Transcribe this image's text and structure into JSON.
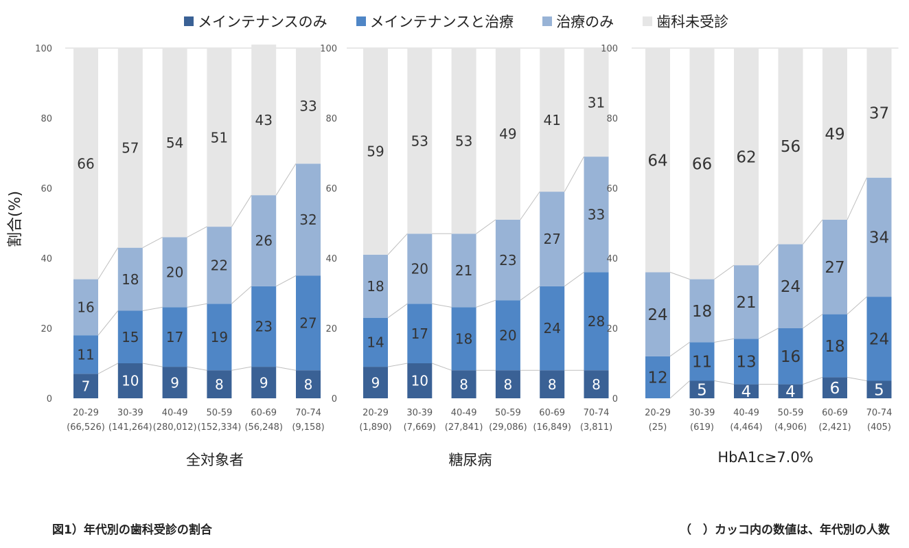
{
  "legend": {
    "items": [
      {
        "label": "メインテナンスのみ",
        "color": "#3a6195"
      },
      {
        "label": "メインテナンスと治療",
        "color": "#4f86c6"
      },
      {
        "label": "治療のみ",
        "color": "#98b3d6"
      },
      {
        "label": "歯科未受診",
        "color": "#e6e6e6"
      }
    ]
  },
  "y_axis_label": "割合(%)",
  "caption_left": "図1）年代別の歯科受診の割合",
  "caption_right": "（　）カッコ内の数値は、年代別の人数",
  "chart_data": [
    {
      "type": "bar",
      "stacked": true,
      "title": "全対象者",
      "ylim": [
        0,
        100
      ],
      "yticks": [
        0,
        20,
        40,
        60,
        80,
        100
      ],
      "categories": [
        "20-29",
        "30-39",
        "40-49",
        "50-59",
        "60-69",
        "70-74"
      ],
      "counts": [
        "(66,526)",
        "(141,264)",
        "(280,012)",
        "(152,334)",
        "(56,248)",
        "(9,158)"
      ],
      "series": [
        {
          "name": "メインテナンスのみ",
          "values": [
            7,
            10,
            9,
            8,
            9,
            8
          ]
        },
        {
          "name": "メインテナンスと治療",
          "values": [
            11,
            15,
            17,
            19,
            23,
            27
          ]
        },
        {
          "name": "治療のみ",
          "values": [
            16,
            18,
            20,
            22,
            26,
            32
          ]
        },
        {
          "name": "歯科未受診",
          "values": [
            66,
            57,
            54,
            51,
            43,
            33
          ]
        }
      ]
    },
    {
      "type": "bar",
      "stacked": true,
      "title": "糖尿病",
      "ylim": [
        0,
        100
      ],
      "yticks": [
        0,
        20,
        40,
        60,
        80,
        100
      ],
      "categories": [
        "20-29",
        "30-39",
        "40-49",
        "50-59",
        "60-69",
        "70-74"
      ],
      "counts": [
        "(1,890)",
        "(7,669)",
        "(27,841)",
        "(29,086)",
        "(16,849)",
        "(3,811)"
      ],
      "series": [
        {
          "name": "メインテナンスのみ",
          "values": [
            9,
            10,
            8,
            8,
            8,
            8
          ]
        },
        {
          "name": "メインテナンスと治療",
          "values": [
            14,
            17,
            18,
            20,
            24,
            28
          ]
        },
        {
          "name": "治療のみ",
          "values": [
            18,
            20,
            21,
            23,
            27,
            33
          ]
        },
        {
          "name": "歯科未受診",
          "values": [
            59,
            53,
            53,
            49,
            41,
            31
          ]
        }
      ]
    },
    {
      "type": "bar",
      "stacked": true,
      "title": "HbA1c≥7.0%",
      "ylim": [
        0,
        100
      ],
      "yticks": [
        0,
        20,
        40,
        60,
        80,
        100
      ],
      "categories": [
        "20-29",
        "30-39",
        "40-49",
        "50-59",
        "60-69",
        "70-74"
      ],
      "counts": [
        "(25)",
        "(619)",
        "(4,464)",
        "(4,906)",
        "(2,421)",
        "(405)"
      ],
      "series": [
        {
          "name": "メインテナンスのみ",
          "values": [
            0,
            5,
            4,
            4,
            6,
            5
          ]
        },
        {
          "name": "メインテナンスと治療",
          "values": [
            12,
            11,
            13,
            16,
            18,
            24
          ]
        },
        {
          "name": "治療のみ",
          "values": [
            24,
            18,
            21,
            24,
            27,
            34
          ]
        },
        {
          "name": "歯科未受診",
          "values": [
            64,
            66,
            62,
            56,
            49,
            37
          ]
        }
      ]
    }
  ]
}
